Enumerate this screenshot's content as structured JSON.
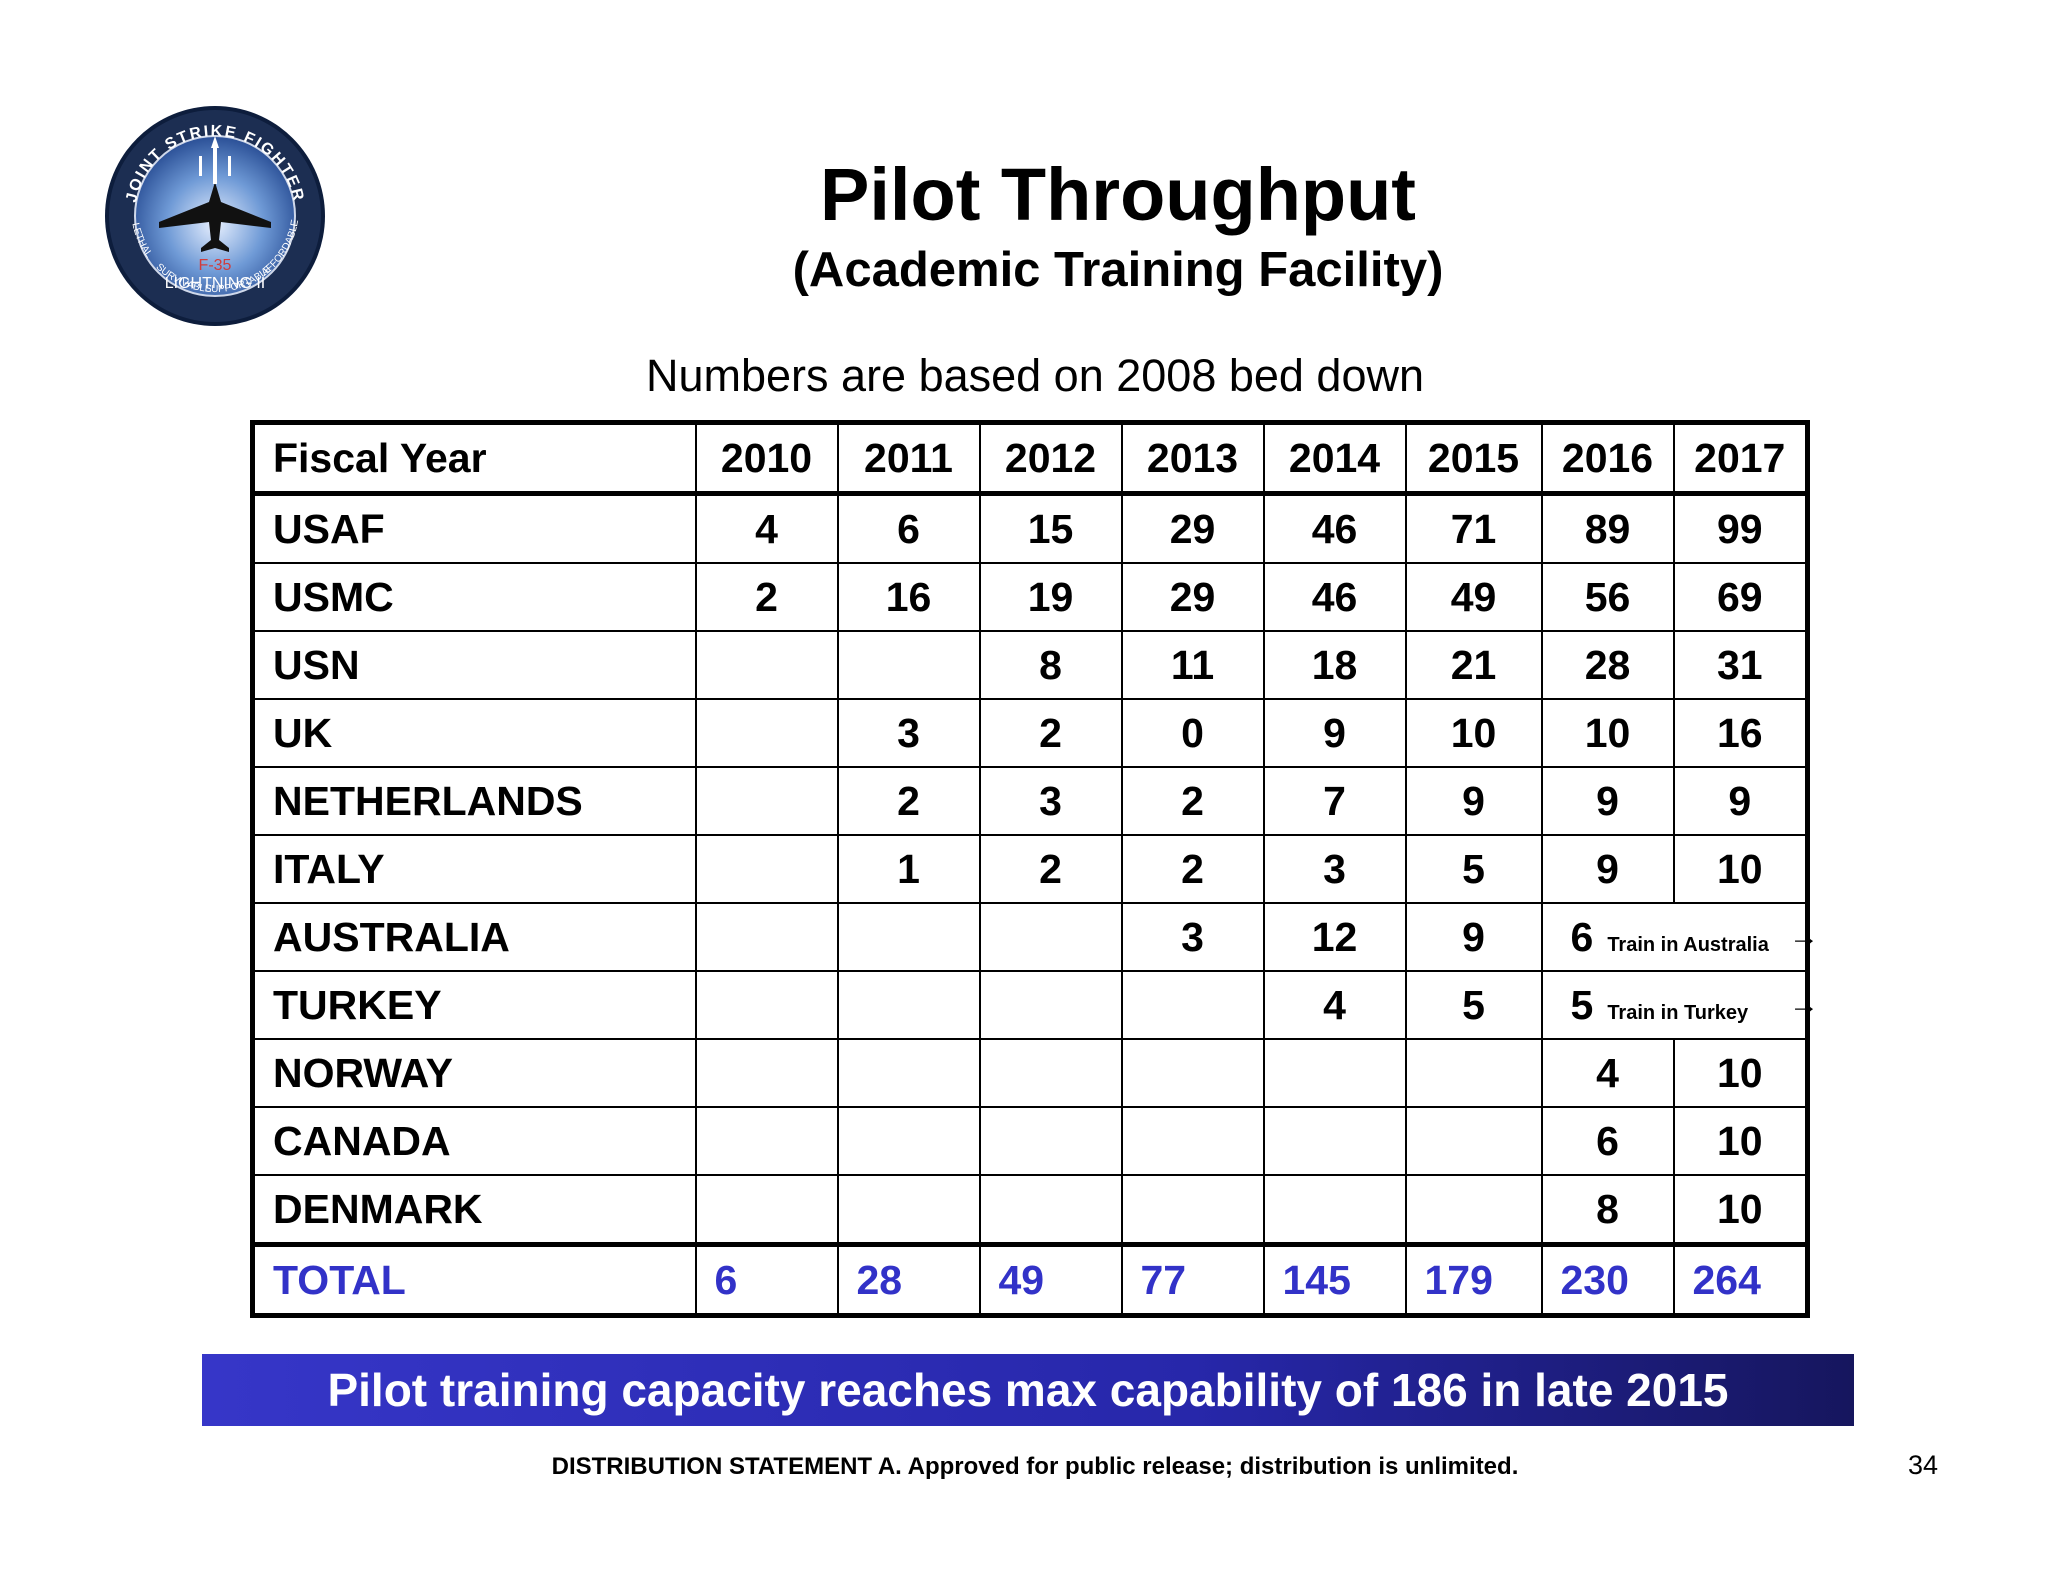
{
  "logo": {
    "ring_text_top": "JOINT STRIKE FIGHTER",
    "ring_text_bottom_left": "LETHAL",
    "ring_text_bottom_mid1": "SURVIVABLE",
    "ring_text_bottom_mid2": "SUPPORTABLE",
    "ring_text_bottom_right": "AFFORDABLE",
    "model": "F-35",
    "name": "LIGHTNING II"
  },
  "title": "Pilot Throughput",
  "subtitle": "(Academic Training Facility)",
  "note": "Numbers are based on 2008 bed down",
  "table": {
    "header": [
      "Fiscal Year",
      "2010",
      "2011",
      "2012",
      "2013",
      "2014",
      "2015",
      "2016",
      "2017"
    ],
    "rows": [
      {
        "label": "USAF",
        "values": [
          "4",
          "6",
          "15",
          "29",
          "46",
          "71",
          "89",
          "99"
        ]
      },
      {
        "label": "USMC",
        "values": [
          "2",
          "16",
          "19",
          "29",
          "46",
          "49",
          "56",
          "69"
        ]
      },
      {
        "label": "USN",
        "values": [
          "",
          "",
          "8",
          "11",
          "18",
          "21",
          "28",
          "31"
        ]
      },
      {
        "label": "UK",
        "values": [
          "",
          "3",
          "2",
          "0",
          "9",
          "10",
          "10",
          "16"
        ]
      },
      {
        "label": "NETHERLANDS",
        "values": [
          "",
          "2",
          "3",
          "2",
          "7",
          "9",
          "9",
          "9"
        ]
      },
      {
        "label": "ITALY",
        "values": [
          "",
          "1",
          "2",
          "2",
          "3",
          "5",
          "9",
          "10"
        ]
      },
      {
        "label": "AUSTRALIA",
        "values": [
          "",
          "",
          "",
          "3",
          "12",
          "9"
        ],
        "span_value": "6",
        "span_note": "Train in Australia"
      },
      {
        "label": "TURKEY",
        "values": [
          "",
          "",
          "",
          "",
          "4",
          "5"
        ],
        "span_value": "5",
        "span_note": "Train in Turkey"
      },
      {
        "label": "NORWAY",
        "values": [
          "",
          "",
          "",
          "",
          "",
          "",
          "4",
          "10"
        ]
      },
      {
        "label": "CANADA",
        "values": [
          "",
          "",
          "",
          "",
          "",
          "",
          "6",
          "10"
        ]
      },
      {
        "label": "DENMARK",
        "values": [
          "",
          "",
          "",
          "",
          "",
          "",
          "8",
          "10"
        ]
      }
    ],
    "total": {
      "label": "TOTAL",
      "values": [
        "6",
        "28",
        "49",
        "77",
        "145",
        "179",
        "230",
        "264"
      ]
    }
  },
  "banner": "Pilot training capacity reaches max capability of 186 in late 2015",
  "footer": "DISTRIBUTION STATEMENT A.  Approved for public release; distribution is unlimited.",
  "page_number": "34",
  "colors": {
    "total_text": "#3232c8",
    "banner_start": "#3636c8",
    "banner_end": "#16165e"
  }
}
